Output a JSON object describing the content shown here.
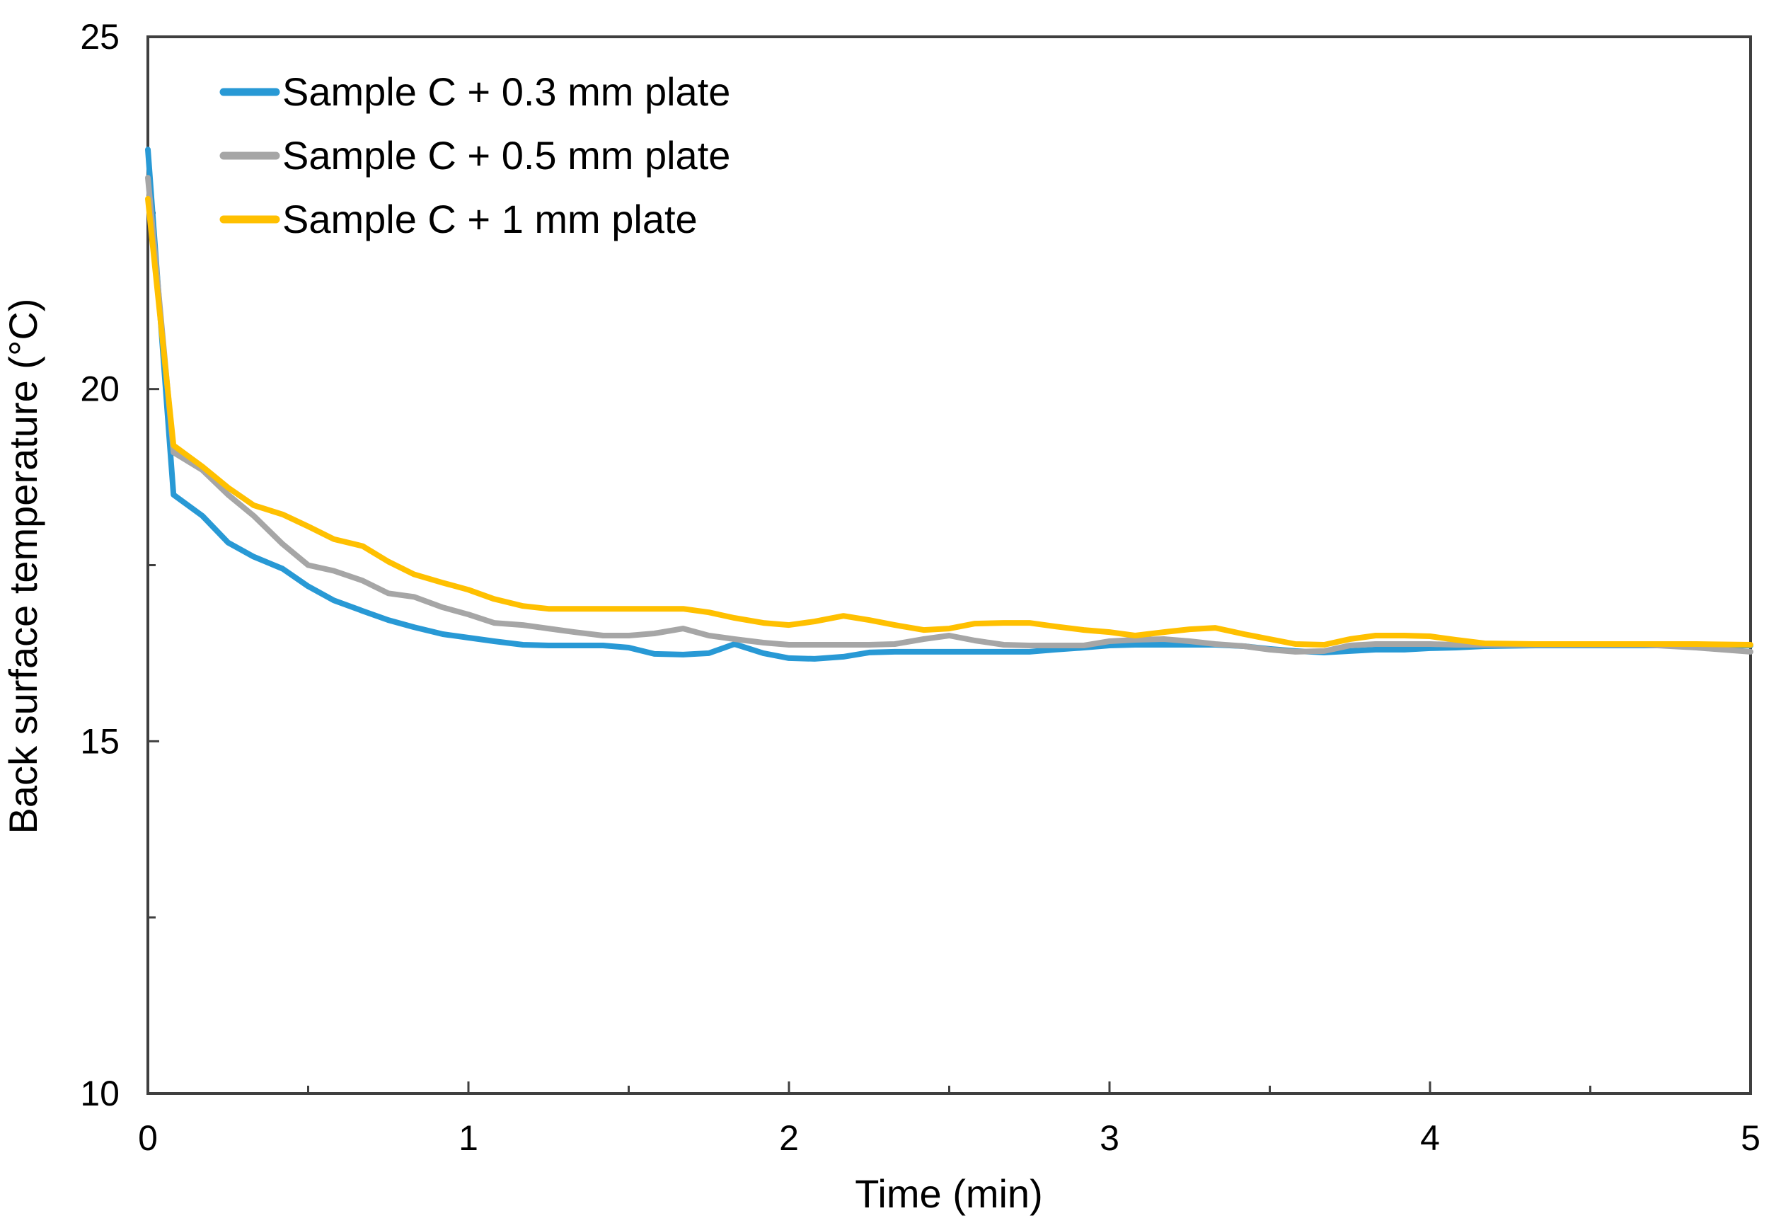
{
  "chart_data": {
    "type": "line",
    "title": "",
    "xlabel": "Time (min)",
    "ylabel": "Back surface temperature (°C)",
    "xlim": [
      0,
      5
    ],
    "ylim": [
      10,
      25
    ],
    "x_major_ticks": [
      0,
      1,
      2,
      3,
      4,
      5
    ],
    "x_minor_ticks": [
      0.5,
      1.5,
      2.5,
      3.5,
      4.5
    ],
    "y_major_ticks": [
      10,
      15,
      20,
      25
    ],
    "y_minor_ticks": [
      12.5,
      17.5,
      22.5
    ],
    "grid": false,
    "legend_position": "top-left-inside",
    "x": [
      0,
      0.08,
      0.17,
      0.25,
      0.33,
      0.42,
      0.5,
      0.58,
      0.67,
      0.75,
      0.83,
      0.92,
      1,
      1.08,
      1.17,
      1.25,
      1.33,
      1.42,
      1.5,
      1.58,
      1.67,
      1.75,
      1.83,
      1.92,
      2,
      2.08,
      2.17,
      2.25,
      2.33,
      2.42,
      2.5,
      2.58,
      2.67,
      2.75,
      2.83,
      2.92,
      3,
      3.08,
      3.17,
      3.25,
      3.33,
      3.42,
      3.5,
      3.58,
      3.67,
      3.75,
      3.83,
      3.92,
      4,
      4.08,
      4.17,
      4.33,
      4.5,
      4.67,
      4.83,
      5
    ],
    "series": [
      {
        "name": "Sample C + 0.3 mm plate",
        "color": "#2899D5",
        "values": [
          23.4,
          18.5,
          18.2,
          17.82,
          17.62,
          17.45,
          17.2,
          17.0,
          16.85,
          16.72,
          16.62,
          16.52,
          16.47,
          16.42,
          16.37,
          16.36,
          16.36,
          16.36,
          16.33,
          16.24,
          16.23,
          16.25,
          16.38,
          16.25,
          16.18,
          16.17,
          16.2,
          16.26,
          16.27,
          16.27,
          16.27,
          16.27,
          16.27,
          16.27,
          16.3,
          16.33,
          16.36,
          16.37,
          16.37,
          16.37,
          16.37,
          16.35,
          16.31,
          16.28,
          16.26,
          16.28,
          16.3,
          16.3,
          16.32,
          16.33,
          16.35,
          16.36,
          16.36,
          16.36,
          16.36,
          16.36
        ]
      },
      {
        "name": "Sample C + 0.5 mm plate",
        "color": "#A6A6A6",
        "values": [
          23.0,
          19.1,
          18.85,
          18.5,
          18.2,
          17.8,
          17.5,
          17.42,
          17.28,
          17.1,
          17.05,
          16.9,
          16.8,
          16.68,
          16.65,
          16.6,
          16.55,
          16.5,
          16.5,
          16.53,
          16.6,
          16.5,
          16.45,
          16.4,
          16.37,
          16.37,
          16.37,
          16.37,
          16.38,
          16.45,
          16.5,
          16.43,
          16.37,
          16.36,
          16.36,
          16.36,
          16.42,
          16.44,
          16.45,
          16.42,
          16.38,
          16.35,
          16.3,
          16.27,
          16.28,
          16.36,
          16.38,
          16.38,
          16.38,
          16.37,
          16.37,
          16.37,
          16.37,
          16.37,
          16.33,
          16.27
        ]
      },
      {
        "name": "Sample C + 1 mm plate",
        "color": "#FFC000",
        "values": [
          22.7,
          19.2,
          18.9,
          18.6,
          18.35,
          18.22,
          18.05,
          17.87,
          17.77,
          17.55,
          17.37,
          17.25,
          17.15,
          17.02,
          16.92,
          16.88,
          16.88,
          16.88,
          16.88,
          16.88,
          16.88,
          16.83,
          16.75,
          16.68,
          16.65,
          16.7,
          16.78,
          16.72,
          16.65,
          16.58,
          16.6,
          16.67,
          16.68,
          16.68,
          16.63,
          16.58,
          16.55,
          16.5,
          16.55,
          16.59,
          16.61,
          16.52,
          16.45,
          16.38,
          16.37,
          16.45,
          16.5,
          16.5,
          16.49,
          16.44,
          16.39,
          16.38,
          16.38,
          16.38,
          16.38,
          16.37
        ]
      }
    ],
    "axis_color": "#3f3f3f",
    "text_color": "#000000"
  }
}
